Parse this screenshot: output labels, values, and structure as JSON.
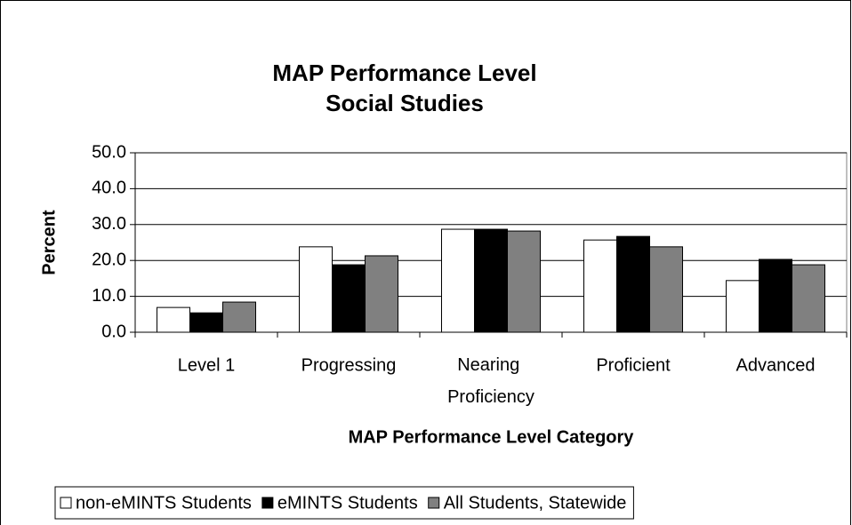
{
  "chart_data": {
    "type": "bar",
    "title": "MAP Performance Level",
    "subtitle": "Social Studies",
    "x_label": "MAP Performance Level Category",
    "y_label": "Percent",
    "categories": [
      "Level 1",
      "Progressing",
      "Nearing Proficiency",
      "Proficient",
      "Advanced"
    ],
    "series": [
      {
        "name": "non-eMINTS Students",
        "color": "#ffffff",
        "values": [
          6.9,
          23.8,
          28.7,
          25.7,
          14.4
        ]
      },
      {
        "name": "eMINTS Students",
        "color": "#000000",
        "values": [
          5.4,
          18.8,
          28.7,
          26.7,
          20.3
        ]
      },
      {
        "name": "All Students, Statewide",
        "color": "#808080",
        "values": [
          8.4,
          21.3,
          28.2,
          23.8,
          18.8
        ]
      }
    ],
    "ylim": [
      0,
      50
    ],
    "yticks": [
      {
        "value": 0,
        "label": "0.0"
      },
      {
        "value": 10,
        "label": "10.0"
      },
      {
        "value": 20,
        "label": "20.0"
      },
      {
        "value": 30,
        "label": "30.0"
      },
      {
        "value": 40,
        "label": "40.0"
      },
      {
        "value": 50,
        "label": "50.0"
      }
    ],
    "grid": true,
    "legend": "bottom"
  }
}
